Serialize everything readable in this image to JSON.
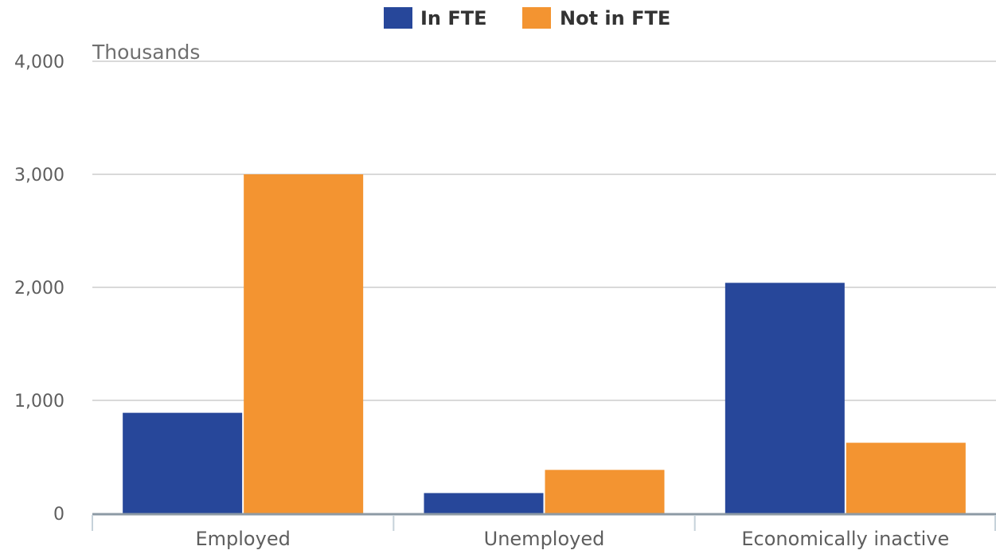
{
  "chart_data": {
    "type": "bar",
    "categories": [
      "Employed",
      "Unemployed",
      "Economically inactive"
    ],
    "series": [
      {
        "name": "In FTE",
        "color": "#27479a",
        "values": [
          890,
          180,
          2040
        ]
      },
      {
        "name": "Not in FTE",
        "color": "#f39431",
        "values": [
          3000,
          385,
          625
        ]
      }
    ],
    "ylabel": "Thousands",
    "ylim": [
      0,
      4000
    ],
    "yticks": [
      "0",
      "1,000",
      "2,000",
      "3,000",
      "4,000"
    ],
    "ytick_values": [
      0,
      1000,
      2000,
      3000,
      4000
    ],
    "grid": true,
    "legend_position": "top-center"
  }
}
